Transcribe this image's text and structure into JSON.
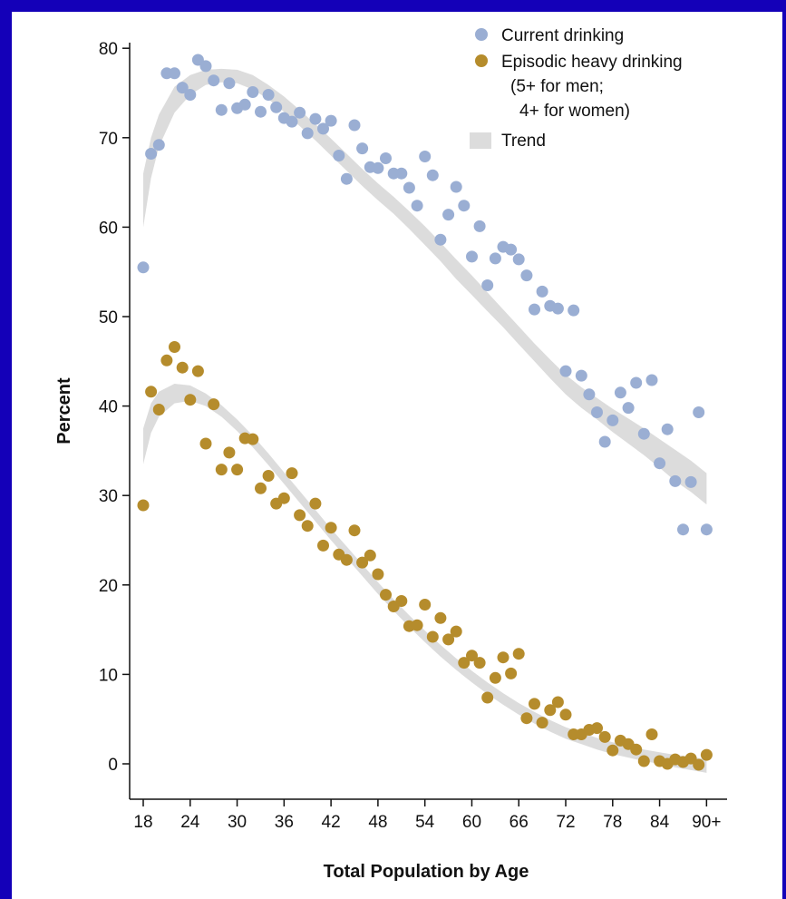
{
  "page": {
    "background": "#1400b8",
    "panel_background": "#ffffff"
  },
  "chart_data": {
    "type": "scatter",
    "xlabel": "Total Population by Age",
    "ylabel": "Percent",
    "xlim": [
      17,
      91
    ],
    "ylim": [
      -4,
      82
    ],
    "grid": false,
    "legend_position": "top-right",
    "x_ticks": [
      18,
      24,
      30,
      36,
      42,
      48,
      54,
      60,
      66,
      72,
      78,
      84,
      90
    ],
    "x_tick_labels": [
      "18",
      "24",
      "30",
      "36",
      "42",
      "48",
      "54",
      "60",
      "66",
      "72",
      "78",
      "84",
      "90+"
    ],
    "y_ticks": [
      0,
      10,
      20,
      30,
      40,
      50,
      60,
      70,
      80
    ],
    "y_tick_labels": [
      "0",
      "10",
      "20",
      "30",
      "40",
      "50",
      "60",
      "70",
      "80"
    ],
    "legend": [
      {
        "label": "Current drinking",
        "color": "#9aaed3",
        "marker": "circle"
      },
      {
        "label": "Episodic heavy drinking",
        "sublabels": [
          "(5+ for men;",
          "4+ for women)"
        ],
        "color": "#b58c2c",
        "marker": "circle"
      },
      {
        "label": "Trend",
        "color": "#dcdcdc",
        "marker": "band"
      }
    ],
    "series": [
      {
        "name": "Current drinking",
        "color": "#9aaed3",
        "points": [
          [
            18,
            55.5
          ],
          [
            19,
            68.2
          ],
          [
            20,
            69.2
          ],
          [
            21,
            77.2
          ],
          [
            22,
            77.2
          ],
          [
            23,
            75.6
          ],
          [
            24,
            74.8
          ],
          [
            25,
            78.7
          ],
          [
            26,
            78.0
          ],
          [
            27,
            76.4
          ],
          [
            28,
            73.1
          ],
          [
            29,
            76.1
          ],
          [
            30,
            73.3
          ],
          [
            31,
            73.7
          ],
          [
            32,
            75.1
          ],
          [
            33,
            72.9
          ],
          [
            34,
            74.8
          ],
          [
            35,
            73.4
          ],
          [
            36,
            72.2
          ],
          [
            37,
            71.8
          ],
          [
            38,
            72.8
          ],
          [
            39,
            70.5
          ],
          [
            40,
            72.1
          ],
          [
            41,
            71.0
          ],
          [
            42,
            71.9
          ],
          [
            43,
            68.0
          ],
          [
            44,
            65.4
          ],
          [
            45,
            71.4
          ],
          [
            46,
            68.8
          ],
          [
            47,
            66.7
          ],
          [
            48,
            66.6
          ],
          [
            49,
            67.7
          ],
          [
            50,
            66.0
          ],
          [
            51,
            66.0
          ],
          [
            52,
            64.4
          ],
          [
            53,
            62.4
          ],
          [
            54,
            67.9
          ],
          [
            55,
            65.8
          ],
          [
            56,
            58.6
          ],
          [
            57,
            61.4
          ],
          [
            58,
            64.5
          ],
          [
            59,
            62.4
          ],
          [
            60,
            56.7
          ],
          [
            61,
            60.1
          ],
          [
            62,
            53.5
          ],
          [
            63,
            56.5
          ],
          [
            64,
            57.8
          ],
          [
            65,
            57.5
          ],
          [
            66,
            56.4
          ],
          [
            67,
            54.6
          ],
          [
            68,
            50.8
          ],
          [
            69,
            52.8
          ],
          [
            70,
            51.2
          ],
          [
            71,
            50.9
          ],
          [
            72,
            43.9
          ],
          [
            73,
            50.7
          ],
          [
            74,
            43.4
          ],
          [
            75,
            41.3
          ],
          [
            76,
            39.3
          ],
          [
            77,
            36.0
          ],
          [
            78,
            38.4
          ],
          [
            79,
            41.5
          ],
          [
            80,
            39.8
          ],
          [
            81,
            42.6
          ],
          [
            82,
            36.9
          ],
          [
            83,
            42.9
          ],
          [
            84,
            33.6
          ],
          [
            85,
            37.4
          ],
          [
            86,
            31.6
          ],
          [
            87,
            26.2
          ],
          [
            88,
            31.5
          ],
          [
            89,
            39.3
          ],
          [
            90,
            26.2
          ]
        ],
        "trend_lower": [
          [
            18,
            60.0
          ],
          [
            19,
            65.5
          ],
          [
            20,
            69.0
          ],
          [
            22,
            72.8
          ],
          [
            24,
            74.8
          ],
          [
            26,
            75.9
          ],
          [
            28,
            76.2
          ],
          [
            30,
            76.1
          ],
          [
            32,
            75.4
          ],
          [
            34,
            74.3
          ],
          [
            36,
            72.9
          ],
          [
            38,
            71.3
          ],
          [
            40,
            69.7
          ],
          [
            42,
            68.0
          ],
          [
            44,
            66.3
          ],
          [
            46,
            64.6
          ],
          [
            48,
            63.0
          ],
          [
            50,
            61.5
          ],
          [
            52,
            59.8
          ],
          [
            54,
            58.0
          ],
          [
            56,
            56.2
          ],
          [
            58,
            54.2
          ],
          [
            60,
            52.4
          ],
          [
            62,
            50.6
          ],
          [
            64,
            48.8
          ],
          [
            66,
            46.9
          ],
          [
            68,
            45.0
          ],
          [
            70,
            43.1
          ],
          [
            72,
            41.3
          ],
          [
            74,
            39.8
          ],
          [
            76,
            38.5
          ],
          [
            78,
            37.1
          ],
          [
            80,
            35.8
          ],
          [
            82,
            34.5
          ],
          [
            84,
            33.1
          ],
          [
            86,
            31.6
          ],
          [
            88,
            30.4
          ],
          [
            90,
            29.0
          ]
        ],
        "trend_upper": [
          [
            18,
            66.0
          ],
          [
            19,
            70.0
          ],
          [
            20,
            72.6
          ],
          [
            22,
            75.7
          ],
          [
            24,
            77.0
          ],
          [
            26,
            77.6
          ],
          [
            28,
            77.7
          ],
          [
            30,
            77.6
          ],
          [
            32,
            77.0
          ],
          [
            34,
            75.9
          ],
          [
            36,
            74.6
          ],
          [
            38,
            73.1
          ],
          [
            40,
            71.5
          ],
          [
            42,
            69.9
          ],
          [
            44,
            68.2
          ],
          [
            46,
            66.5
          ],
          [
            48,
            64.9
          ],
          [
            50,
            63.4
          ],
          [
            52,
            61.8
          ],
          [
            54,
            60.1
          ],
          [
            56,
            58.3
          ],
          [
            58,
            56.4
          ],
          [
            60,
            54.6
          ],
          [
            62,
            52.7
          ],
          [
            64,
            50.8
          ],
          [
            66,
            48.9
          ],
          [
            68,
            47.0
          ],
          [
            70,
            45.2
          ],
          [
            72,
            43.5
          ],
          [
            74,
            42.1
          ],
          [
            76,
            40.9
          ],
          [
            78,
            39.7
          ],
          [
            80,
            38.6
          ],
          [
            82,
            37.5
          ],
          [
            84,
            36.3
          ],
          [
            86,
            35.1
          ],
          [
            88,
            33.9
          ],
          [
            90,
            32.5
          ]
        ]
      },
      {
        "name": "Episodic heavy drinking",
        "color": "#b58c2c",
        "points": [
          [
            18,
            28.9
          ],
          [
            19,
            41.6
          ],
          [
            20,
            39.6
          ],
          [
            21,
            45.1
          ],
          [
            22,
            46.6
          ],
          [
            23,
            44.3
          ],
          [
            24,
            40.7
          ],
          [
            25,
            43.9
          ],
          [
            26,
            35.8
          ],
          [
            27,
            40.2
          ],
          [
            28,
            32.9
          ],
          [
            29,
            34.8
          ],
          [
            30,
            32.9
          ],
          [
            31,
            36.4
          ],
          [
            32,
            36.3
          ],
          [
            33,
            30.8
          ],
          [
            34,
            32.2
          ],
          [
            35,
            29.1
          ],
          [
            36,
            29.7
          ],
          [
            37,
            32.5
          ],
          [
            38,
            27.8
          ],
          [
            39,
            26.6
          ],
          [
            40,
            29.1
          ],
          [
            41,
            24.4
          ],
          [
            42,
            26.4
          ],
          [
            43,
            23.4
          ],
          [
            44,
            22.8
          ],
          [
            45,
            26.1
          ],
          [
            46,
            22.5
          ],
          [
            47,
            23.3
          ],
          [
            48,
            21.2
          ],
          [
            49,
            18.9
          ],
          [
            50,
            17.6
          ],
          [
            51,
            18.2
          ],
          [
            52,
            15.4
          ],
          [
            53,
            15.5
          ],
          [
            54,
            17.8
          ],
          [
            55,
            14.2
          ],
          [
            56,
            16.3
          ],
          [
            57,
            13.9
          ],
          [
            58,
            14.8
          ],
          [
            59,
            11.3
          ],
          [
            60,
            12.1
          ],
          [
            61,
            11.3
          ],
          [
            62,
            7.4
          ],
          [
            63,
            9.6
          ],
          [
            64,
            11.9
          ],
          [
            65,
            10.1
          ],
          [
            66,
            12.3
          ],
          [
            67,
            5.1
          ],
          [
            68,
            6.7
          ],
          [
            69,
            4.6
          ],
          [
            70,
            6.0
          ],
          [
            71,
            6.9
          ],
          [
            72,
            5.5
          ],
          [
            73,
            3.3
          ],
          [
            74,
            3.3
          ],
          [
            75,
            3.8
          ],
          [
            76,
            4.0
          ],
          [
            77,
            3.0
          ],
          [
            78,
            1.5
          ],
          [
            79,
            2.6
          ],
          [
            80,
            2.2
          ],
          [
            81,
            1.6
          ],
          [
            82,
            0.3
          ],
          [
            83,
            3.3
          ],
          [
            84,
            0.3
          ],
          [
            85,
            0.0
          ],
          [
            86,
            0.5
          ],
          [
            87,
            0.2
          ],
          [
            88,
            0.6
          ],
          [
            89,
            -0.1
          ],
          [
            90,
            1.0
          ]
        ],
        "trend_lower": [
          [
            18,
            33.5
          ],
          [
            19,
            37.0
          ],
          [
            20,
            38.8
          ],
          [
            22,
            40.3
          ],
          [
            24,
            40.6
          ],
          [
            26,
            40.0
          ],
          [
            28,
            38.8
          ],
          [
            30,
            37.2
          ],
          [
            32,
            35.4
          ],
          [
            34,
            33.4
          ],
          [
            36,
            31.3
          ],
          [
            38,
            29.2
          ],
          [
            40,
            27.1
          ],
          [
            42,
            25.0
          ],
          [
            44,
            23.0
          ],
          [
            46,
            21.0
          ],
          [
            48,
            19.0
          ],
          [
            50,
            17.1
          ],
          [
            52,
            15.3
          ],
          [
            54,
            13.6
          ],
          [
            56,
            12.0
          ],
          [
            58,
            10.5
          ],
          [
            60,
            9.1
          ],
          [
            62,
            7.8
          ],
          [
            64,
            6.6
          ],
          [
            66,
            5.5
          ],
          [
            68,
            4.5
          ],
          [
            70,
            3.6
          ],
          [
            72,
            2.8
          ],
          [
            74,
            2.2
          ],
          [
            76,
            1.6
          ],
          [
            78,
            1.1
          ],
          [
            80,
            0.7
          ],
          [
            82,
            0.3
          ],
          [
            84,
            0.0
          ],
          [
            86,
            -0.4
          ],
          [
            88,
            -0.7
          ],
          [
            90,
            -1.0
          ]
        ],
        "trend_upper": [
          [
            18,
            37.5
          ],
          [
            19,
            40.3
          ],
          [
            20,
            41.6
          ],
          [
            22,
            42.5
          ],
          [
            24,
            42.3
          ],
          [
            26,
            41.4
          ],
          [
            28,
            40.1
          ],
          [
            30,
            38.5
          ],
          [
            32,
            36.7
          ],
          [
            34,
            34.7
          ],
          [
            36,
            32.6
          ],
          [
            38,
            30.5
          ],
          [
            40,
            28.4
          ],
          [
            42,
            26.3
          ],
          [
            44,
            24.3
          ],
          [
            46,
            22.3
          ],
          [
            48,
            20.3
          ],
          [
            50,
            18.4
          ],
          [
            52,
            16.6
          ],
          [
            54,
            14.9
          ],
          [
            56,
            13.3
          ],
          [
            58,
            11.8
          ],
          [
            60,
            10.4
          ],
          [
            62,
            9.1
          ],
          [
            64,
            7.9
          ],
          [
            66,
            6.8
          ],
          [
            68,
            5.8
          ],
          [
            70,
            4.9
          ],
          [
            72,
            4.1
          ],
          [
            74,
            3.5
          ],
          [
            76,
            2.9
          ],
          [
            78,
            2.4
          ],
          [
            80,
            2.0
          ],
          [
            82,
            1.6
          ],
          [
            84,
            1.3
          ],
          [
            86,
            1.0
          ],
          [
            88,
            0.8
          ],
          [
            90,
            0.5
          ]
        ]
      }
    ]
  }
}
